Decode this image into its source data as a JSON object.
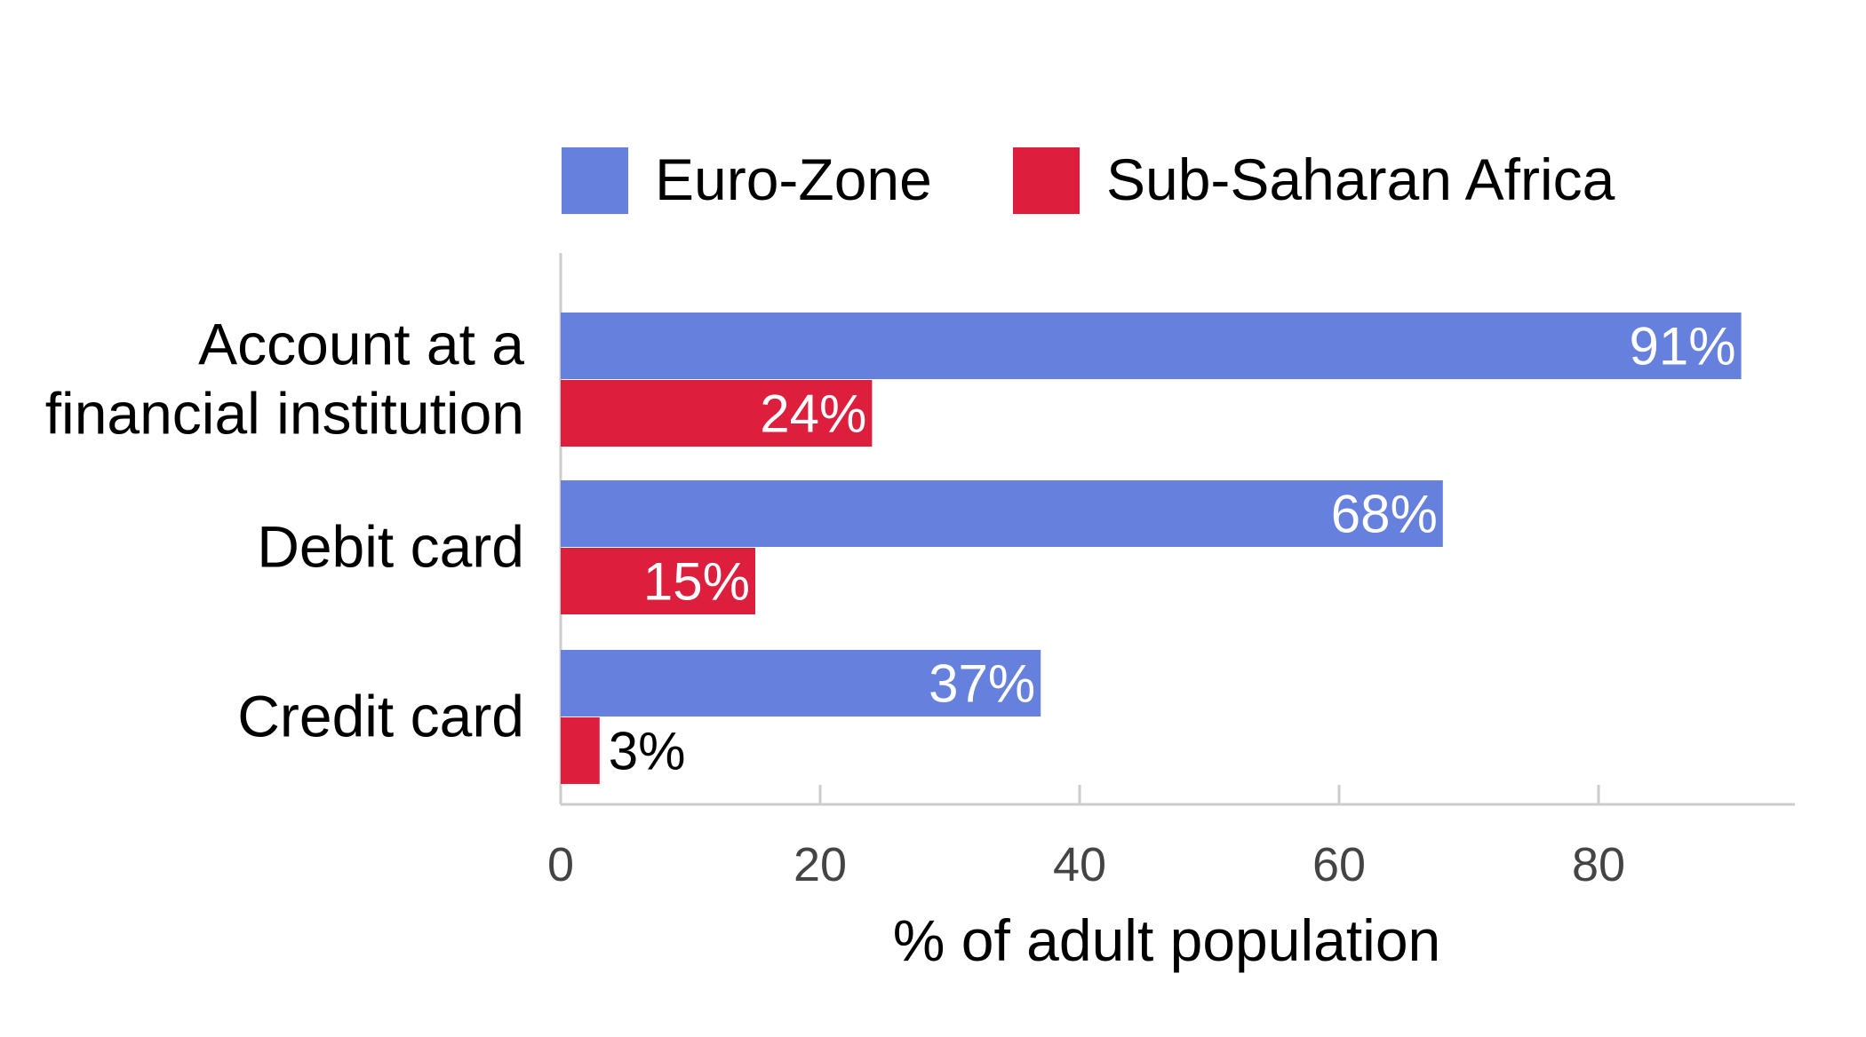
{
  "chart_data": {
    "type": "bar",
    "orientation": "horizontal",
    "categories": [
      [
        "Account at a",
        "financial institution"
      ],
      [
        "Debit card"
      ],
      [
        "Credit card"
      ]
    ],
    "series": [
      {
        "name": "Euro-Zone",
        "values": [
          91,
          68,
          37
        ],
        "labels": [
          "91%",
          "68%",
          "37%"
        ],
        "color": "#6680de"
      },
      {
        "name": "Sub-Saharan Africa",
        "values": [
          24,
          15,
          3
        ],
        "labels": [
          "24%",
          "15%",
          "3%"
        ],
        "color": "#dd1f3d"
      }
    ],
    "xlabel": "% of adult population",
    "xlim": [
      0,
      95
    ],
    "xticks": [
      0,
      20,
      40,
      60,
      80
    ],
    "xtick_labels": [
      "0",
      "20",
      "40",
      "60",
      "80"
    ],
    "legend_position": "top",
    "grid": false
  }
}
